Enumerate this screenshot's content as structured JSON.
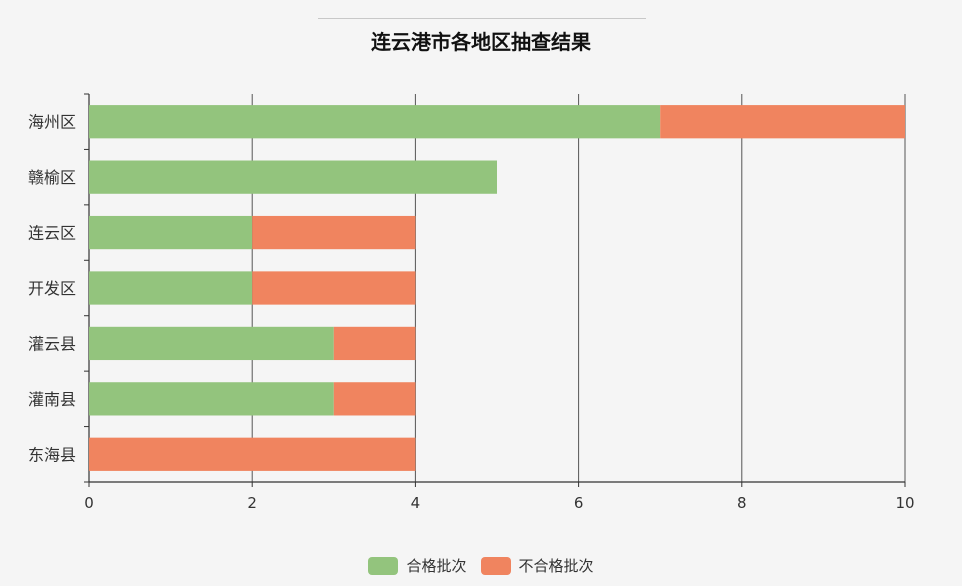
{
  "chart_data": {
    "type": "bar",
    "orientation": "horizontal",
    "stacked": true,
    "title": "连云港市各地区抽查结果",
    "categories": [
      "海州区",
      "赣榆区",
      "连云区",
      "开发区",
      "灌云县",
      "灌南县",
      "东海县"
    ],
    "series": [
      {
        "name": "合格批次",
        "color": "#93c47d",
        "values": [
          7,
          5,
          2,
          2,
          3,
          3,
          0
        ]
      },
      {
        "name": "不合格批次",
        "color": "#f0845f",
        "values": [
          3,
          0,
          2,
          2,
          1,
          1,
          4
        ]
      }
    ],
    "xlim": [
      0,
      10
    ],
    "xticks": [
      "0",
      "2",
      "4",
      "6",
      "8",
      "10"
    ],
    "grid": true,
    "legend_position": "bottom-center"
  }
}
